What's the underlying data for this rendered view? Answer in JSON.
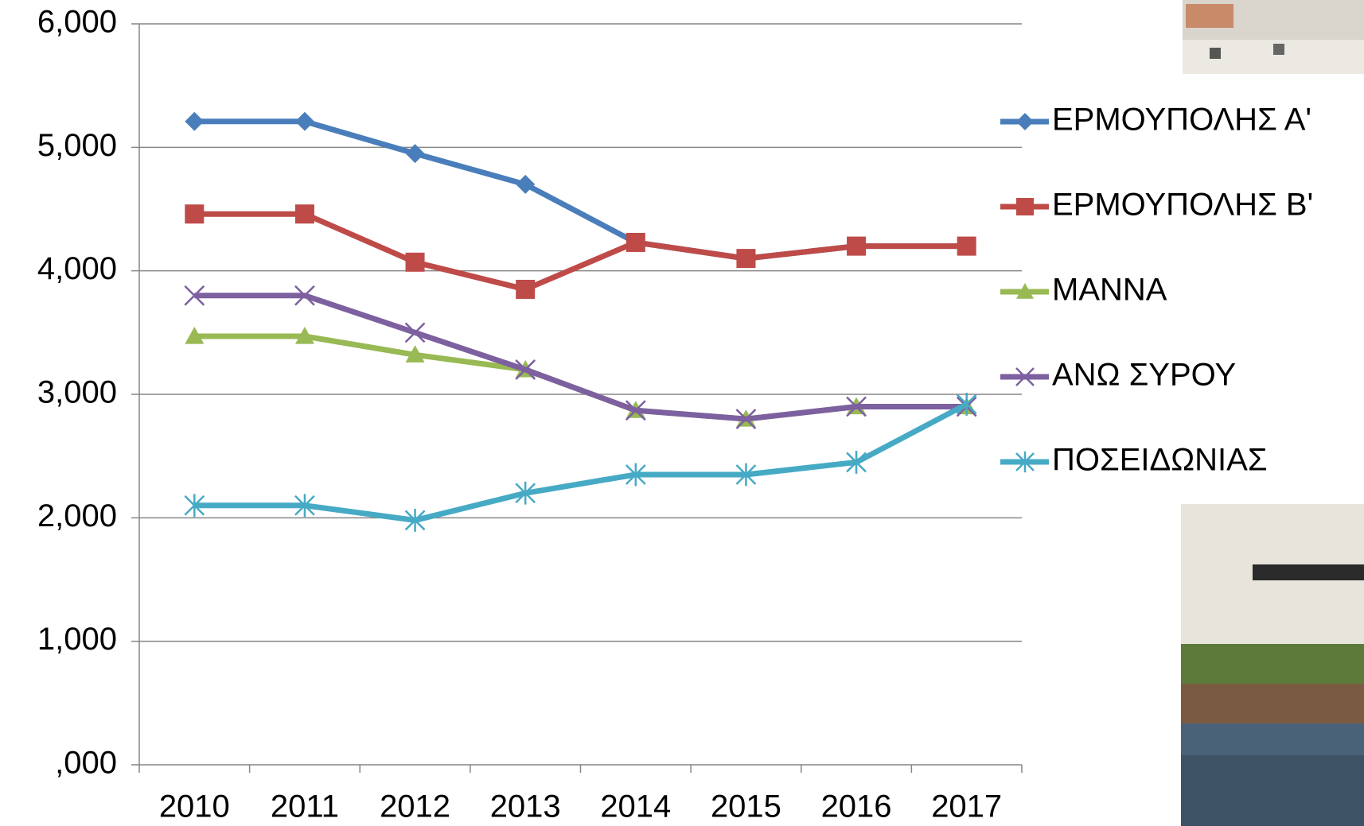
{
  "chart_data": {
    "type": "line",
    "categories": [
      "2010",
      "2011",
      "2012",
      "2013",
      "2014",
      "2015",
      "2016",
      "2017"
    ],
    "series": [
      {
        "name": "ΕΡΜΟΥΠΟΛΗΣ Α'",
        "color": "#4a7ebb",
        "marker": "diamond",
        "values": [
          5210,
          5210,
          4950,
          4700,
          4230,
          4100,
          4200,
          4200
        ]
      },
      {
        "name": "ΕΡΜΟΥΠΟΛΗΣ Β'",
        "color": "#be4b48",
        "marker": "square",
        "values": [
          4460,
          4460,
          4070,
          3850,
          4230,
          4100,
          4200,
          4200
        ]
      },
      {
        "name": "ΜΑΝΝΑ",
        "color": "#98b954",
        "marker": "triangle",
        "values": [
          3470,
          3470,
          3320,
          3200,
          2870,
          2800,
          2900,
          2900
        ]
      },
      {
        "name": "ΑΝΩ ΣΥΡΟΥ",
        "color": "#7d60a0",
        "marker": "x",
        "values": [
          3800,
          3800,
          3500,
          3200,
          2870,
          2800,
          2900,
          2900
        ]
      },
      {
        "name": "ΠΟΣΕΙΔΩΝΙΑΣ",
        "color": "#46aac5",
        "marker": "star",
        "values": [
          2100,
          2100,
          1980,
          2200,
          2350,
          2350,
          2450,
          2920
        ]
      }
    ],
    "ylim": [
      0,
      6000
    ],
    "yticks": [
      {
        "value": 0,
        "label": ",000"
      },
      {
        "value": 1000,
        "label": "1,000"
      },
      {
        "value": 2000,
        "label": "2,000"
      },
      {
        "value": 3000,
        "label": "3,000"
      },
      {
        "value": 4000,
        "label": "4,000"
      },
      {
        "value": 5000,
        "label": "5,000"
      },
      {
        "value": 6000,
        "label": "6,000"
      }
    ],
    "grid": true,
    "legend": "right"
  }
}
